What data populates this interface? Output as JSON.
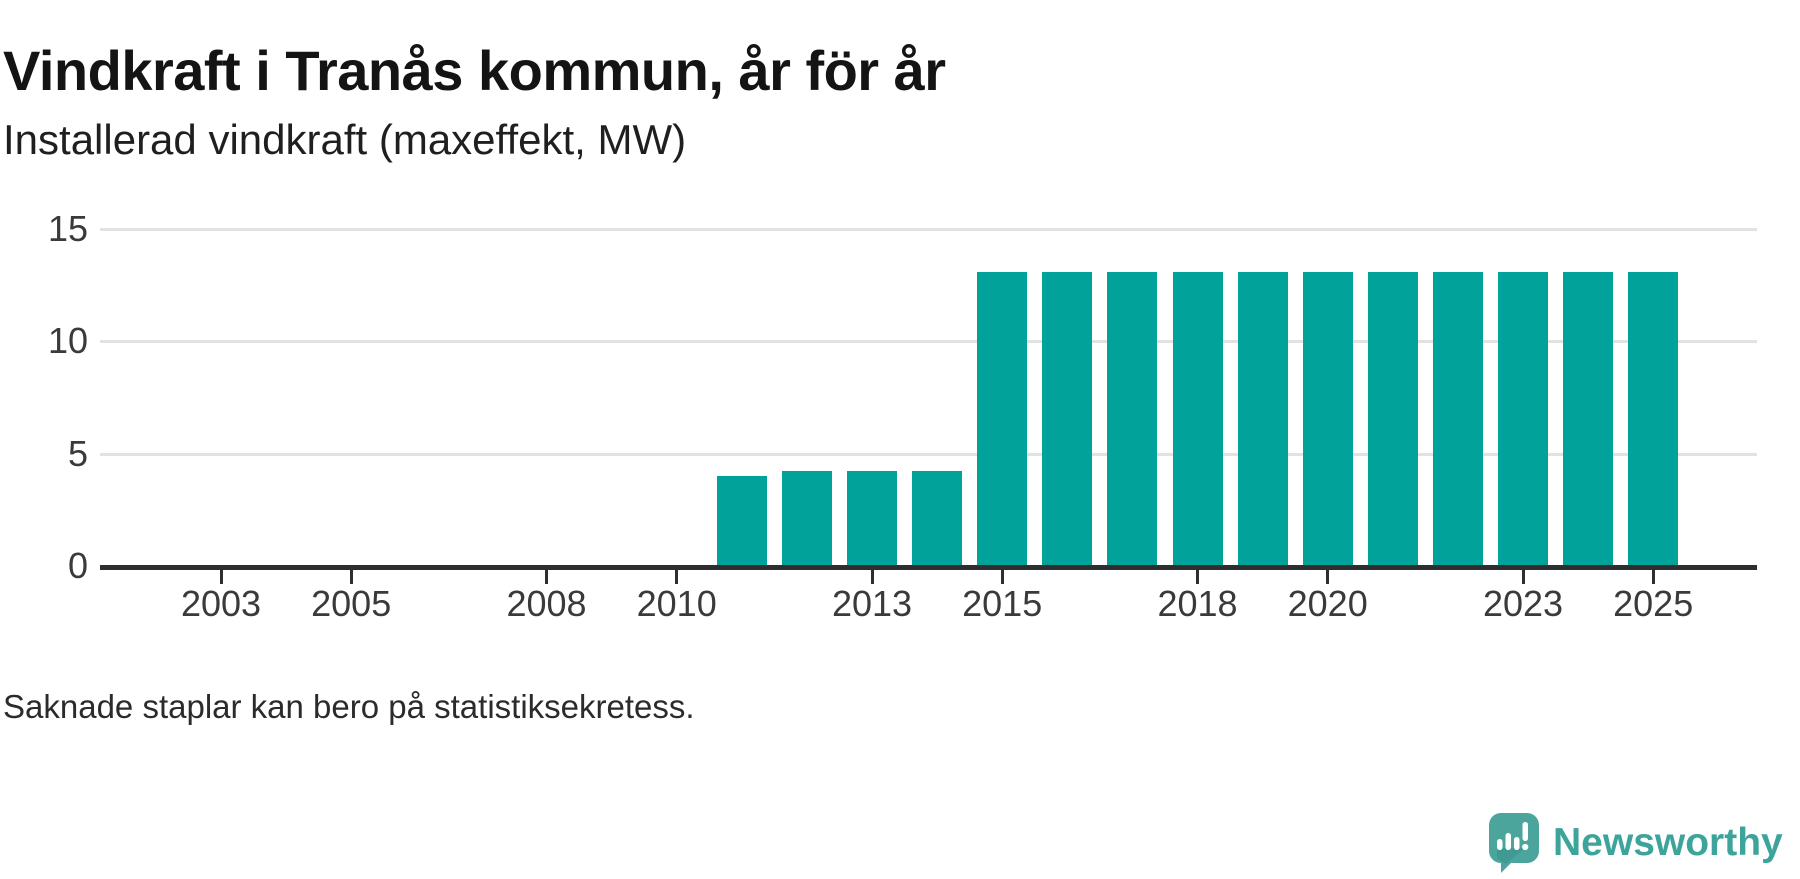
{
  "header": {
    "title": "Vindkraft i Tranås kommun, år för år",
    "subtitle": "Installerad vindkraft (maxeffekt, MW)"
  },
  "footer": {
    "note": "Saknade staplar kan bero på statistiksekretess."
  },
  "branding": {
    "name": "Newsworthy",
    "logo_icon": "bar-chart-speech-bubble-icon",
    "accent_color": "#3da49b"
  },
  "chart_data": {
    "type": "bar",
    "title": "Vindkraft i Tranås kommun, år för år",
    "unit_label": "Installerad vindkraft (maxeffekt, MW)",
    "bar_color": "#00a29a",
    "grid": true,
    "legend": "none",
    "ylim": [
      0,
      15
    ],
    "yticks": [
      0,
      5,
      10,
      15
    ],
    "xticks": [
      2003,
      2005,
      2008,
      2010,
      2013,
      2015,
      2018,
      2020,
      2023,
      2025
    ],
    "x_range_years": [
      2001,
      2026
    ],
    "missing_note": "Bars absent 2001-2010 (missing / statistiksekretess)",
    "series": [
      {
        "name": "Installerad vindkraft (maxeffekt, MW)",
        "points": [
          {
            "year": 2001,
            "value": null
          },
          {
            "year": 2002,
            "value": null
          },
          {
            "year": 2003,
            "value": null
          },
          {
            "year": 2004,
            "value": null
          },
          {
            "year": 2005,
            "value": null
          },
          {
            "year": 2006,
            "value": null
          },
          {
            "year": 2007,
            "value": null
          },
          {
            "year": 2008,
            "value": null
          },
          {
            "year": 2009,
            "value": null
          },
          {
            "year": 2010,
            "value": null
          },
          {
            "year": 2011,
            "value": 4.0
          },
          {
            "year": 2012,
            "value": 4.25
          },
          {
            "year": 2013,
            "value": 4.25
          },
          {
            "year": 2014,
            "value": 4.25
          },
          {
            "year": 2015,
            "value": 13.1
          },
          {
            "year": 2016,
            "value": 13.1
          },
          {
            "year": 2017,
            "value": 13.1
          },
          {
            "year": 2018,
            "value": 13.1
          },
          {
            "year": 2019,
            "value": 13.1
          },
          {
            "year": 2020,
            "value": 13.1
          },
          {
            "year": 2021,
            "value": 13.1
          },
          {
            "year": 2022,
            "value": 13.1
          },
          {
            "year": 2023,
            "value": 13.1
          },
          {
            "year": 2024,
            "value": 13.1
          },
          {
            "year": 2025,
            "value": 13.1
          }
        ]
      }
    ]
  }
}
